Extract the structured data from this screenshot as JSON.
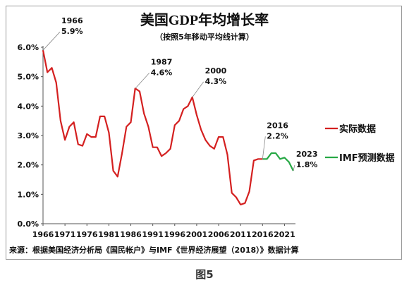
{
  "chart_data": {
    "type": "line",
    "title": "美国GDP年均增长率",
    "subtitle": "（按照5年移动平均线计算）",
    "source_note": "来源：根据美国经济分析局《国民帐户》与IMF《世界经济展望（2018）》数据计算",
    "ylim": [
      0,
      6
    ],
    "y_ticks": [
      "0.0%",
      "1.0%",
      "2.0%",
      "3.0%",
      "4.0%",
      "5.0%",
      "6.0%"
    ],
    "x_ticks": [
      "1966",
      "1971",
      "1976",
      "1981",
      "1986",
      "1991",
      "1996",
      "2001",
      "2006",
      "2011",
      "2016",
      "2021"
    ],
    "legend_position": "right",
    "series": [
      {
        "name": "实际数据",
        "color": "#d42020",
        "x": [
          1966,
          1967,
          1968,
          1969,
          1970,
          1971,
          1972,
          1973,
          1974,
          1975,
          1976,
          1977,
          1978,
          1979,
          1980,
          1981,
          1982,
          1983,
          1984,
          1985,
          1986,
          1987,
          1988,
          1989,
          1990,
          1991,
          1992,
          1993,
          1994,
          1995,
          1996,
          1997,
          1998,
          1999,
          2000,
          2001,
          2002,
          2003,
          2004,
          2005,
          2006,
          2007,
          2008,
          2009,
          2010,
          2011,
          2012,
          2013,
          2014,
          2015,
          2016
        ],
        "y": [
          5.9,
          5.15,
          5.3,
          4.8,
          3.5,
          2.85,
          3.3,
          3.45,
          2.7,
          2.65,
          3.05,
          2.95,
          2.95,
          3.65,
          3.65,
          3.1,
          1.8,
          1.6,
          2.4,
          3.3,
          3.45,
          4.6,
          4.5,
          3.75,
          3.3,
          2.6,
          2.6,
          2.3,
          2.4,
          2.55,
          3.35,
          3.5,
          3.9,
          4.0,
          4.3,
          3.7,
          3.2,
          2.85,
          2.65,
          2.55,
          2.95,
          2.95,
          2.35,
          1.05,
          0.9,
          0.65,
          0.7,
          1.1,
          2.15,
          2.2,
          2.2
        ]
      },
      {
        "name": "IMF预测数据",
        "color": "#27a845",
        "x": [
          2016,
          2017,
          2018,
          2019,
          2020,
          2021,
          2022,
          2023
        ],
        "y": [
          2.2,
          2.2,
          2.4,
          2.4,
          2.2,
          2.25,
          2.1,
          1.8
        ]
      }
    ],
    "annotations": [
      {
        "year": "1966",
        "value": "5.9%",
        "x": 1966,
        "y": 5.9
      },
      {
        "year": "1987",
        "value": "4.6%",
        "x": 1987,
        "y": 4.6
      },
      {
        "year": "2000",
        "value": "4.3%",
        "x": 2000,
        "y": 4.3
      },
      {
        "year": "2016",
        "value": "2.2%",
        "x": 2016,
        "y": 2.2
      },
      {
        "year": "2023",
        "value": "1.8%",
        "x": 2023,
        "y": 1.8
      }
    ]
  },
  "caption": "图5"
}
